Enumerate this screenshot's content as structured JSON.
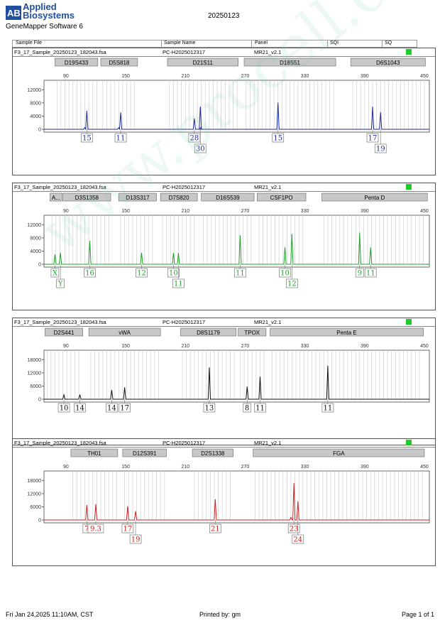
{
  "header": {
    "brand_line1": "Applied",
    "brand_line2": "Biosystems",
    "software": "GeneMapper Software 6",
    "report_date": "20250123"
  },
  "columns": {
    "sample_file": "Sample File",
    "sample_name": "Sample Name",
    "panel": "Panel",
    "sqi": "SQI",
    "sq": "SQ"
  },
  "footer": {
    "timestamp": "Fri Jan 24,2025 11:10AM, CST",
    "printed_by": "Printed by: gm",
    "page": "Page 1 of 1"
  },
  "watermark": "www.procell.com.cn",
  "colors": {
    "blue": "#1c2c9e",
    "green": "#22a02a",
    "black": "#111111",
    "red": "#cc2222",
    "sq_ok": "#1fcc2a"
  },
  "chart_data": [
    {
      "type": "line",
      "sample_file": "F3_17_Sample_20250123_182043.fsa",
      "sample_name": "PC-H2025012317",
      "panel": "MR21_v2.1",
      "color": "#1c2c9e",
      "xticks": [
        90,
        150,
        210,
        270,
        330,
        390,
        450
      ],
      "xlim": [
        68,
        455
      ],
      "yticks": [
        0,
        4000,
        8000,
        12000
      ],
      "ylim": [
        0,
        14000
      ],
      "markers": [
        {
          "name": "D19S433",
          "from": 79,
          "to": 122
        },
        {
          "name": "D5S818",
          "from": 125,
          "to": 162
        },
        {
          "name": "D21S11",
          "from": 192,
          "to": 263
        },
        {
          "name": "D18S51",
          "from": 269,
          "to": 361
        },
        {
          "name": "D6S1043",
          "from": 376,
          "to": 451
        }
      ],
      "peaks": [
        {
          "x": 111,
          "h": 5600,
          "label": "15",
          "row": 0
        },
        {
          "x": 109,
          "h": 500
        },
        {
          "x": 145,
          "h": 5100,
          "label": "11",
          "row": 0
        },
        {
          "x": 143,
          "h": 500
        },
        {
          "x": 219,
          "h": 3300,
          "label": "28",
          "row": 0
        },
        {
          "x": 225,
          "h": 6900,
          "label": "30",
          "row": 1
        },
        {
          "x": 225.5,
          "h": 600
        },
        {
          "x": 303,
          "h": 8100,
          "label": "15",
          "row": 0
        },
        {
          "x": 398,
          "h": 6900,
          "label": "17",
          "row": 0
        },
        {
          "x": 406,
          "h": 5200,
          "label": "19",
          "row": 1
        }
      ]
    },
    {
      "type": "line",
      "sample_file": "F3_17_Sample_20250123_182043.fsa",
      "sample_name": "PC-H2025012317",
      "panel": "MR21_v2.1",
      "color": "#22a02a",
      "xticks": [
        90,
        150,
        210,
        270,
        330,
        390,
        450
      ],
      "xlim": [
        68,
        455
      ],
      "yticks": [
        0,
        4000,
        8000,
        12000
      ],
      "ylim": [
        0,
        14000
      ],
      "markers": [
        {
          "name": "A...",
          "from": 74,
          "to": 86
        },
        {
          "name": "D3S1358",
          "from": 87,
          "to": 135
        },
        {
          "name": "D13S317",
          "from": 143,
          "to": 181
        },
        {
          "name": "D7S820",
          "from": 185,
          "to": 222
        },
        {
          "name": "D16S539",
          "from": 226,
          "to": 279
        },
        {
          "name": "CSF1PO",
          "from": 282,
          "to": 331
        },
        {
          "name": "Penta D",
          "from": 347,
          "to": 453
        }
      ],
      "peaks": [
        {
          "x": 79,
          "h": 3000,
          "label": "X",
          "row": 0
        },
        {
          "x": 84.5,
          "h": 3500,
          "label": "Y",
          "row": 1
        },
        {
          "x": 114,
          "h": 7100,
          "label": "16",
          "row": 0
        },
        {
          "x": 166,
          "h": 3500,
          "label": "12",
          "row": 0
        },
        {
          "x": 198,
          "h": 3400,
          "label": "10",
          "row": 0
        },
        {
          "x": 203,
          "h": 3400,
          "label": "11",
          "row": 1
        },
        {
          "x": 265,
          "h": 8800,
          "label": "11",
          "row": 0
        },
        {
          "x": 310,
          "h": 5200,
          "label": "10",
          "row": 0
        },
        {
          "x": 317,
          "h": 9200,
          "label": "12",
          "row": 1
        },
        {
          "x": 385,
          "h": 9600,
          "label": "9",
          "row": 0
        },
        {
          "x": 396,
          "h": 5100,
          "label": "11",
          "row": 0
        }
      ]
    },
    {
      "type": "line",
      "sample_file": "F3_17_Sample_20250123_182043.fsa",
      "sample_name": "PC-H2025012317",
      "panel": "MR21_v2.1",
      "color": "#111111",
      "xticks": [
        90,
        150,
        210,
        270,
        330,
        390,
        450
      ],
      "xlim": [
        68,
        455
      ],
      "yticks": [
        0,
        6000,
        12000,
        18000
      ],
      "ylim": [
        0,
        21000
      ],
      "markers": [
        {
          "name": "D2S441",
          "from": 69,
          "to": 107
        },
        {
          "name": "vWA",
          "from": 113,
          "to": 185
        },
        {
          "name": "D8S1179",
          "from": 205,
          "to": 261
        },
        {
          "name": "TPOX",
          "from": 263,
          "to": 291
        },
        {
          "name": "Penta E",
          "from": 295,
          "to": 449
        }
      ],
      "peaks": [
        {
          "x": 88,
          "h": 2000,
          "label": "10",
          "row": 0
        },
        {
          "x": 104,
          "h": 2100,
          "label": "14",
          "row": 0
        },
        {
          "x": 136,
          "h": 4200,
          "label": "14",
          "row": 0
        },
        {
          "x": 149,
          "h": 5400,
          "label": "17",
          "row": 0
        },
        {
          "x": 234,
          "h": 14500,
          "label": "13",
          "row": 0
        },
        {
          "x": 272,
          "h": 5700,
          "label": "8",
          "row": 0
        },
        {
          "x": 285,
          "h": 10300,
          "label": "11",
          "row": 0
        },
        {
          "x": 353,
          "h": 15200,
          "label": "11",
          "row": 0
        }
      ]
    },
    {
      "type": "line",
      "sample_file": "F3_17_Sample_20250123_182043.fsa",
      "sample_name": "PC-H2025012317",
      "panel": "MR21_v2.1",
      "color": "#cc2222",
      "xticks": [
        90,
        150,
        210,
        270,
        330,
        390,
        450
      ],
      "xlim": [
        68,
        455
      ],
      "yticks": [
        0,
        6000,
        12000,
        18000
      ],
      "ylim": [
        0,
        21000
      ],
      "markers": [
        {
          "name": "TH01",
          "from": 95,
          "to": 142
        },
        {
          "name": "D12S391",
          "from": 147,
          "to": 191
        },
        {
          "name": "D2S1338",
          "from": 217,
          "to": 258
        },
        {
          "name": "FGA",
          "from": 278,
          "to": 450
        }
      ],
      "peaks": [
        {
          "x": 111,
          "h": 6800,
          "label": "7",
          "row": 0
        },
        {
          "x": 120,
          "h": 7300,
          "label": "9.3",
          "row": 0
        },
        {
          "x": 152,
          "h": 6300,
          "label": "17",
          "row": 0
        },
        {
          "x": 160,
          "h": 4000,
          "label": "19",
          "row": 1
        },
        {
          "x": 240,
          "h": 9500,
          "label": "21",
          "row": 0
        },
        {
          "x": 319,
          "h": 16800,
          "label": "23",
          "row": 0
        },
        {
          "x": 323,
          "h": 8500,
          "label": "24",
          "row": 1
        },
        {
          "x": 316,
          "h": 1200
        }
      ]
    }
  ]
}
